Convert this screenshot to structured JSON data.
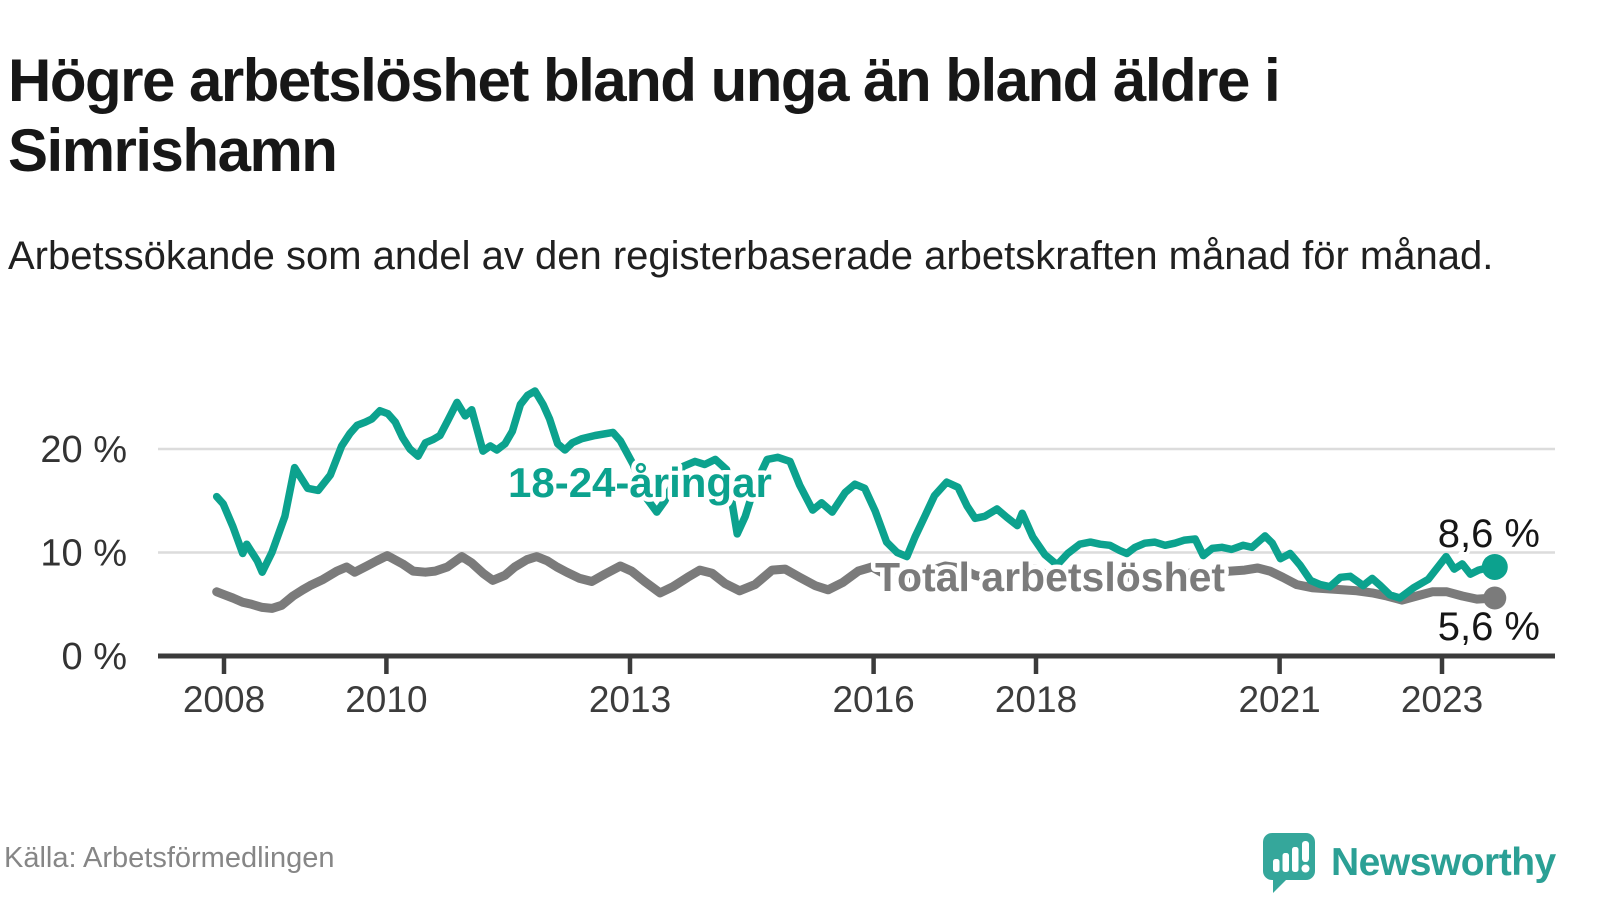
{
  "header": {
    "title": "Högre arbetslöshet bland unga än bland äldre i Simrishamn",
    "subtitle": "Arbetssökande som andel av den registerbaserade arbetskraften månad för månad."
  },
  "footer": {
    "source": "Källa: Arbetsförmedlingen",
    "brand": "Newsworthy",
    "logo_icon": "newsworthy-speech-bubble-bar-chart-icon"
  },
  "colors": {
    "accent_teal": "#0ca28e",
    "series_gray": "#7b7b7b",
    "axis_dark": "#3b3b3b",
    "grid_light": "#dcdcdc",
    "tick_text": "#3c3c3c",
    "y_label_text": "#333333",
    "end_label_text": "#161616",
    "logo_teal": "#35a79b"
  },
  "chart_data": {
    "type": "line",
    "title": "Högre arbetslöshet bland unga än bland äldre i Simrishamn",
    "subtitle": "Arbetssökande som andel av den registerbaserade arbetskraften månad för månad.",
    "grid": "horizontal",
    "legend": "inline-labels",
    "x_axis": {
      "tick_values": [
        2008,
        2010,
        2013,
        2016,
        2018,
        2021,
        2023
      ],
      "tick_labels": [
        "2008",
        "2010",
        "2013",
        "2016",
        "2018",
        "2021",
        "2023"
      ],
      "range": [
        2007.9,
        2023.9
      ]
    },
    "y_axis": {
      "tick_values": [
        0,
        10,
        20
      ],
      "tick_labels": [
        "0 %",
        "10 %",
        "20 %"
      ],
      "grid_values": [
        10,
        20
      ],
      "ylim": [
        0,
        27
      ],
      "unit": "percent"
    },
    "series": [
      {
        "name": "Total arbetslöshet",
        "color": "#7b7b7b",
        "end_label": "5,6 %",
        "end_value": 5.6,
        "line_width": 9,
        "dot_radius": 11.5,
        "points": [
          [
            2007.91,
            6.2
          ],
          [
            2008.01,
            5.9
          ],
          [
            2008.11,
            5.6
          ],
          [
            2008.23,
            5.2
          ],
          [
            2008.34,
            5.0
          ],
          [
            2008.47,
            4.7
          ],
          [
            2008.59,
            4.6
          ],
          [
            2008.71,
            4.9
          ],
          [
            2008.85,
            5.8
          ],
          [
            2008.97,
            6.4
          ],
          [
            2009.06,
            6.8
          ],
          [
            2009.22,
            7.4
          ],
          [
            2009.39,
            8.2
          ],
          [
            2009.51,
            8.6
          ],
          [
            2009.61,
            8.1
          ],
          [
            2009.76,
            8.7
          ],
          [
            2009.88,
            9.2
          ],
          [
            2010.01,
            9.7
          ],
          [
            2010.2,
            8.9
          ],
          [
            2010.33,
            8.2
          ],
          [
            2010.48,
            8.1
          ],
          [
            2010.6,
            8.2
          ],
          [
            2010.75,
            8.6
          ],
          [
            2010.93,
            9.6
          ],
          [
            2011.05,
            9.0
          ],
          [
            2011.19,
            8.0
          ],
          [
            2011.31,
            7.3
          ],
          [
            2011.46,
            7.8
          ],
          [
            2011.58,
            8.6
          ],
          [
            2011.73,
            9.3
          ],
          [
            2011.85,
            9.6
          ],
          [
            2011.98,
            9.2
          ],
          [
            2012.1,
            8.6
          ],
          [
            2012.22,
            8.1
          ],
          [
            2012.38,
            7.5
          ],
          [
            2012.53,
            7.2
          ],
          [
            2012.69,
            7.9
          ],
          [
            2012.88,
            8.7
          ],
          [
            2013.02,
            8.2
          ],
          [
            2013.18,
            7.2
          ],
          [
            2013.37,
            6.1
          ],
          [
            2013.53,
            6.7
          ],
          [
            2013.71,
            7.6
          ],
          [
            2013.86,
            8.3
          ],
          [
            2014.01,
            8.0
          ],
          [
            2014.17,
            7.0
          ],
          [
            2014.35,
            6.3
          ],
          [
            2014.54,
            6.9
          ],
          [
            2014.75,
            8.3
          ],
          [
            2014.91,
            8.4
          ],
          [
            2015.09,
            7.6
          ],
          [
            2015.28,
            6.8
          ],
          [
            2015.44,
            6.4
          ],
          [
            2015.62,
            7.1
          ],
          [
            2015.81,
            8.2
          ],
          [
            2015.98,
            8.6
          ],
          [
            2016.14,
            7.9
          ],
          [
            2016.32,
            7.3
          ],
          [
            2016.51,
            7.6
          ],
          [
            2016.69,
            8.2
          ],
          [
            2016.88,
            8.7
          ],
          [
            2017.06,
            8.5
          ],
          [
            2017.25,
            7.8
          ],
          [
            2017.43,
            7.5
          ],
          [
            2017.62,
            7.8
          ],
          [
            2017.8,
            8.2
          ],
          [
            2017.99,
            8.4
          ],
          [
            2018.17,
            7.7
          ],
          [
            2018.36,
            7.1
          ],
          [
            2018.54,
            7.3
          ],
          [
            2018.73,
            7.7
          ],
          [
            2018.91,
            8.0
          ],
          [
            2019.1,
            7.7
          ],
          [
            2019.28,
            7.3
          ],
          [
            2019.46,
            7.2
          ],
          [
            2019.65,
            7.5
          ],
          [
            2019.83,
            7.9
          ],
          [
            2020.02,
            8.2
          ],
          [
            2020.2,
            8.1
          ],
          [
            2020.39,
            8.2
          ],
          [
            2020.57,
            8.3
          ],
          [
            2020.73,
            8.5
          ],
          [
            2020.88,
            8.2
          ],
          [
            2021.04,
            7.6
          ],
          [
            2021.21,
            6.9
          ],
          [
            2021.4,
            6.6
          ],
          [
            2021.58,
            6.5
          ],
          [
            2021.77,
            6.4
          ],
          [
            2021.95,
            6.3
          ],
          [
            2022.14,
            6.1
          ],
          [
            2022.32,
            5.8
          ],
          [
            2022.51,
            5.4
          ],
          [
            2022.69,
            5.8
          ],
          [
            2022.88,
            6.2
          ],
          [
            2023.06,
            6.2
          ],
          [
            2023.25,
            5.8
          ],
          [
            2023.43,
            5.5
          ],
          [
            2023.65,
            5.6
          ]
        ]
      },
      {
        "name": "18-24-åringar",
        "color": "#0ca28e",
        "end_label": "8,6 %",
        "end_value": 8.6,
        "line_width": 7.5,
        "dot_radius": 13,
        "points": [
          [
            2007.91,
            15.4
          ],
          [
            2007.99,
            14.7
          ],
          [
            2008.11,
            12.5
          ],
          [
            2008.23,
            9.9
          ],
          [
            2008.28,
            10.8
          ],
          [
            2008.41,
            9.2
          ],
          [
            2008.47,
            8.1
          ],
          [
            2008.59,
            10.0
          ],
          [
            2008.75,
            13.5
          ],
          [
            2008.87,
            18.2
          ],
          [
            2009.03,
            16.2
          ],
          [
            2009.16,
            16.0
          ],
          [
            2009.31,
            17.5
          ],
          [
            2009.45,
            20.3
          ],
          [
            2009.55,
            21.5
          ],
          [
            2009.64,
            22.3
          ],
          [
            2009.74,
            22.6
          ],
          [
            2009.82,
            22.9
          ],
          [
            2009.92,
            23.7
          ],
          [
            2010.02,
            23.4
          ],
          [
            2010.11,
            22.6
          ],
          [
            2010.2,
            21.1
          ],
          [
            2010.29,
            20.0
          ],
          [
            2010.39,
            19.3
          ],
          [
            2010.48,
            20.6
          ],
          [
            2010.57,
            20.9
          ],
          [
            2010.66,
            21.3
          ],
          [
            2010.76,
            22.8
          ],
          [
            2010.87,
            24.5
          ],
          [
            2010.97,
            23.2
          ],
          [
            2011.05,
            23.8
          ],
          [
            2011.19,
            19.8
          ],
          [
            2011.28,
            20.3
          ],
          [
            2011.36,
            19.9
          ],
          [
            2011.46,
            20.5
          ],
          [
            2011.55,
            21.7
          ],
          [
            2011.65,
            24.3
          ],
          [
            2011.74,
            25.2
          ],
          [
            2011.83,
            25.6
          ],
          [
            2011.93,
            24.3
          ],
          [
            2012.01,
            22.9
          ],
          [
            2012.11,
            20.5
          ],
          [
            2012.2,
            19.9
          ],
          [
            2012.29,
            20.6
          ],
          [
            2012.41,
            21.0
          ],
          [
            2012.57,
            21.3
          ],
          [
            2012.79,
            21.6
          ],
          [
            2012.88,
            20.8
          ],
          [
            2013.04,
            18.5
          ],
          [
            2013.18,
            15.5
          ],
          [
            2013.33,
            13.9
          ],
          [
            2013.43,
            15.0
          ],
          [
            2013.52,
            16.5
          ],
          [
            2013.65,
            18.3
          ],
          [
            2013.8,
            18.8
          ],
          [
            2013.92,
            18.5
          ],
          [
            2014.05,
            19.0
          ],
          [
            2014.19,
            18.0
          ],
          [
            2014.32,
            11.8
          ],
          [
            2014.42,
            13.5
          ],
          [
            2014.54,
            16.5
          ],
          [
            2014.69,
            19.0
          ],
          [
            2014.82,
            19.2
          ],
          [
            2014.97,
            18.8
          ],
          [
            2015.09,
            16.5
          ],
          [
            2015.25,
            14.1
          ],
          [
            2015.36,
            14.8
          ],
          [
            2015.49,
            13.9
          ],
          [
            2015.65,
            15.8
          ],
          [
            2015.77,
            16.6
          ],
          [
            2015.89,
            16.2
          ],
          [
            2016.02,
            14.0
          ],
          [
            2016.16,
            11.0
          ],
          [
            2016.29,
            10.0
          ],
          [
            2016.41,
            9.6
          ],
          [
            2016.51,
            11.5
          ],
          [
            2016.63,
            13.5
          ],
          [
            2016.75,
            15.5
          ],
          [
            2016.9,
            16.8
          ],
          [
            2017.04,
            16.3
          ],
          [
            2017.15,
            14.5
          ],
          [
            2017.25,
            13.3
          ],
          [
            2017.37,
            13.5
          ],
          [
            2017.52,
            14.2
          ],
          [
            2017.64,
            13.4
          ],
          [
            2017.77,
            12.6
          ],
          [
            2017.83,
            13.8
          ],
          [
            2017.96,
            11.5
          ],
          [
            2018.11,
            9.8
          ],
          [
            2018.26,
            8.8
          ],
          [
            2018.39,
            9.9
          ],
          [
            2018.54,
            10.8
          ],
          [
            2018.67,
            11.0
          ],
          [
            2018.79,
            10.8
          ],
          [
            2018.91,
            10.7
          ],
          [
            2019.03,
            10.2
          ],
          [
            2019.12,
            9.9
          ],
          [
            2019.22,
            10.5
          ],
          [
            2019.34,
            10.9
          ],
          [
            2019.46,
            11.0
          ],
          [
            2019.59,
            10.7
          ],
          [
            2019.71,
            10.9
          ],
          [
            2019.83,
            11.2
          ],
          [
            2019.96,
            11.3
          ],
          [
            2020.06,
            9.7
          ],
          [
            2020.17,
            10.4
          ],
          [
            2020.29,
            10.5
          ],
          [
            2020.41,
            10.3
          ],
          [
            2020.55,
            10.7
          ],
          [
            2020.66,
            10.5
          ],
          [
            2020.82,
            11.6
          ],
          [
            2020.91,
            10.9
          ],
          [
            2021.01,
            9.4
          ],
          [
            2021.13,
            9.9
          ],
          [
            2021.25,
            8.8
          ],
          [
            2021.38,
            7.3
          ],
          [
            2021.5,
            6.9
          ],
          [
            2021.62,
            6.7
          ],
          [
            2021.75,
            7.6
          ],
          [
            2021.87,
            7.7
          ],
          [
            2022.03,
            6.8
          ],
          [
            2022.14,
            7.5
          ],
          [
            2022.24,
            6.8
          ],
          [
            2022.36,
            5.9
          ],
          [
            2022.48,
            5.6
          ],
          [
            2022.65,
            6.6
          ],
          [
            2022.83,
            7.4
          ],
          [
            2023.05,
            9.6
          ],
          [
            2023.15,
            8.4
          ],
          [
            2023.25,
            8.9
          ],
          [
            2023.35,
            7.9
          ],
          [
            2023.45,
            8.3
          ],
          [
            2023.55,
            8.5
          ],
          [
            2023.65,
            8.6
          ]
        ]
      }
    ]
  }
}
